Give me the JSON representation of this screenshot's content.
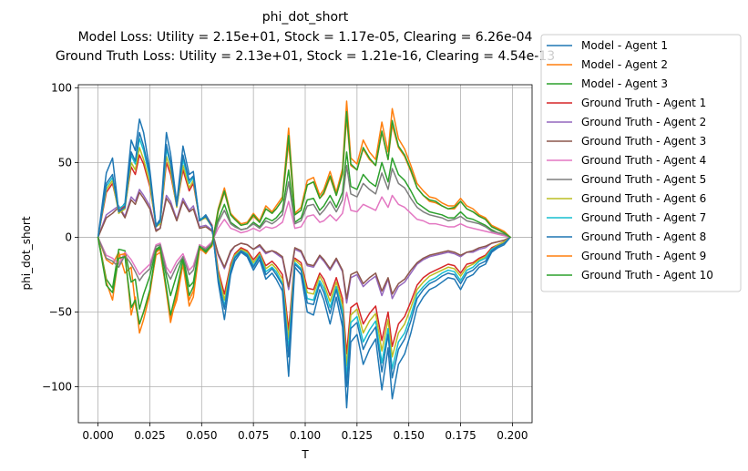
{
  "chart_data": {
    "type": "line",
    "title": "phi_dot_short",
    "subtitle_lines": [
      "Model Loss: Utility = 2.15e+01, Stock = 1.17e-05, Clearing = 6.26e-04",
      "Ground Truth Loss: Utility = 2.13e+01, Stock = 1.21e-16, Clearing = 4.54e-13"
    ],
    "xlabel": "T",
    "ylabel": "phi_dot_short",
    "xlim": [
      -0.0095,
      0.2095
    ],
    "ylim": [
      -124,
      102
    ],
    "xticks": [
      0.0,
      0.025,
      0.05,
      0.075,
      0.1,
      0.125,
      0.15,
      0.175,
      0.2
    ],
    "xtick_labels": [
      "0.000",
      "0.025",
      "0.050",
      "0.075",
      "0.100",
      "0.125",
      "0.150",
      "0.175",
      "0.200"
    ],
    "yticks": [
      -100,
      -50,
      0,
      50,
      100
    ],
    "ytick_labels": [
      "−100",
      "−50",
      "0",
      "50",
      "100"
    ],
    "grid": true,
    "legend_position": "outside-right",
    "x": [
      0.0,
      0.004,
      0.007,
      0.01,
      0.013,
      0.016,
      0.018,
      0.02,
      0.022,
      0.025,
      0.028,
      0.03,
      0.033,
      0.035,
      0.038,
      0.041,
      0.044,
      0.046,
      0.049,
      0.052,
      0.055,
      0.058,
      0.061,
      0.064,
      0.066,
      0.069,
      0.072,
      0.075,
      0.078,
      0.081,
      0.084,
      0.086,
      0.089,
      0.092,
      0.095,
      0.098,
      0.101,
      0.104,
      0.107,
      0.109,
      0.112,
      0.115,
      0.118,
      0.12,
      0.122,
      0.125,
      0.128,
      0.131,
      0.134,
      0.137,
      0.14,
      0.142,
      0.145,
      0.148,
      0.151,
      0.154,
      0.157,
      0.16,
      0.163,
      0.166,
      0.169,
      0.172,
      0.175,
      0.178,
      0.181,
      0.184,
      0.187,
      0.19,
      0.193,
      0.196,
      0.199
    ],
    "series": [
      {
        "name": "Model - Agent 1",
        "color": "#1f77b4",
        "values": [
          0,
          43,
          53,
          17,
          23,
          65,
          58,
          79,
          70,
          45,
          8,
          12,
          70,
          56,
          23,
          61,
          42,
          44,
          11,
          15,
          8,
          -30,
          -55,
          -25,
          -16,
          -10,
          -13,
          -22,
          -15,
          -28,
          -24,
          -28,
          -36,
          -93,
          -20,
          -25,
          -50,
          -52,
          -35,
          -42,
          -58,
          -40,
          -60,
          -114,
          -70,
          -65,
          -85,
          -75,
          -68,
          -102,
          -74,
          -108,
          -85,
          -78,
          -64,
          -47,
          -40,
          -35,
          -33,
          -30,
          -27,
          -28,
          -35,
          -27,
          -25,
          -20,
          -18,
          -10,
          -7,
          -5,
          0
        ]
      },
      {
        "name": "Model - Agent 2",
        "color": "#ff7f0e",
        "values": [
          0,
          -15,
          -18,
          -10,
          -24,
          -20,
          -45,
          -58,
          -50,
          -36,
          -12,
          -10,
          -35,
          -54,
          -42,
          -18,
          -46,
          -40,
          -8,
          -10,
          -6,
          17,
          30,
          15,
          12,
          8,
          9,
          14,
          10,
          19,
          16,
          19,
          25,
          63,
          15,
          18,
          35,
          37,
          26,
          29,
          40,
          28,
          42,
          80,
          48,
          45,
          59,
          52,
          48,
          70,
          52,
          75,
          60,
          54,
          44,
          33,
          28,
          24,
          23,
          21,
          19,
          19,
          24,
          19,
          17,
          14,
          12,
          7,
          5,
          3,
          0
        ]
      },
      {
        "name": "Model - Agent 3",
        "color": "#2ca02c",
        "values": [
          0,
          -28,
          -34,
          -8,
          -9,
          -30,
          -28,
          -48,
          -38,
          -26,
          -8,
          -6,
          -26,
          -39,
          -25,
          -13,
          -33,
          -30,
          -5,
          -9,
          -4,
          12,
          22,
          10,
          8,
          5,
          6,
          10,
          7,
          13,
          11,
          13,
          18,
          45,
          10,
          13,
          25,
          26,
          18,
          21,
          28,
          20,
          30,
          57,
          34,
          32,
          42,
          37,
          34,
          50,
          37,
          53,
          42,
          38,
          31,
          23,
          20,
          17,
          16,
          15,
          13,
          13,
          17,
          13,
          12,
          10,
          8,
          5,
          3,
          2,
          0
        ]
      },
      {
        "name": "Ground Truth - Agent 1",
        "color": "#d62728",
        "values": [
          0,
          30,
          36,
          18,
          21,
          47,
          42,
          55,
          49,
          34,
          8,
          10,
          50,
          42,
          21,
          45,
          31,
          36,
          12,
          14,
          8,
          -22,
          -38,
          -18,
          -11,
          -7,
          -9,
          -15,
          -10,
          -19,
          -16,
          -19,
          -25,
          -62,
          -14,
          -17,
          -34,
          -35,
          -24,
          -28,
          -39,
          -27,
          -41,
          -78,
          -47,
          -44,
          -58,
          -51,
          -46,
          -69,
          -50,
          -73,
          -58,
          -53,
          -43,
          -32,
          -27,
          -24,
          -22,
          -20,
          -18,
          -19,
          -24,
          -18,
          -17,
          -14,
          -12,
          -7,
          -5,
          -3,
          0
        ]
      },
      {
        "name": "Ground Truth - Agent 2",
        "color": "#9467bd",
        "values": [
          0,
          15,
          18,
          21,
          14,
          27,
          24,
          32,
          28,
          21,
          5,
          6,
          28,
          24,
          12,
          26,
          18,
          21,
          7,
          8,
          5,
          -12,
          -21,
          -10,
          -6,
          -4,
          -5,
          -8,
          -6,
          -11,
          -9,
          -11,
          -14,
          -35,
          -8,
          -10,
          -19,
          -20,
          -13,
          -16,
          -22,
          -15,
          -23,
          -44,
          -27,
          -25,
          -33,
          -29,
          -26,
          -39,
          -28,
          -41,
          -33,
          -30,
          -24,
          -18,
          -15,
          -13,
          -12,
          -11,
          -10,
          -11,
          -13,
          -10,
          -10,
          -8,
          -7,
          -4,
          -3,
          -2,
          0
        ]
      },
      {
        "name": "Ground Truth - Agent 3",
        "color": "#8c564b",
        "values": [
          0,
          13,
          16,
          20,
          13,
          25,
          22,
          30,
          26,
          19,
          4,
          6,
          26,
          22,
          11,
          24,
          17,
          19,
          6,
          7,
          4,
          -11,
          -20,
          -9,
          -6,
          -4,
          -5,
          -8,
          -5,
          -10,
          -9,
          -10,
          -13,
          -33,
          -7,
          -9,
          -18,
          -19,
          -12,
          -15,
          -21,
          -14,
          -22,
          -41,
          -25,
          -23,
          -31,
          -27,
          -24,
          -36,
          -27,
          -38,
          -31,
          -28,
          -22,
          -17,
          -14,
          -12,
          -11,
          -10,
          -9,
          -10,
          -12,
          -10,
          -9,
          -7,
          -6,
          -4,
          -3,
          -2,
          0
        ]
      },
      {
        "name": "Ground Truth - Agent 4",
        "color": "#e377c2",
        "values": [
          0,
          -12,
          -14,
          -18,
          -10,
          -15,
          -20,
          -25,
          -22,
          -18,
          -5,
          -4,
          -20,
          -24,
          -16,
          -11,
          -22,
          -19,
          -5,
          -7,
          -3,
          6,
          12,
          6,
          5,
          3,
          4,
          6,
          4,
          7,
          6,
          7,
          10,
          24,
          6,
          7,
          14,
          15,
          10,
          11,
          15,
          11,
          16,
          30,
          18,
          17,
          22,
          20,
          18,
          27,
          20,
          28,
          22,
          20,
          16,
          12,
          11,
          9,
          9,
          8,
          7,
          7,
          9,
          7,
          6,
          5,
          4,
          3,
          2,
          1,
          0
        ]
      },
      {
        "name": "Ground Truth - Agent 5",
        "color": "#7f7f7f",
        "values": [
          0,
          -14,
          -16,
          -20,
          -12,
          -18,
          -23,
          -29,
          -25,
          -21,
          -6,
          -5,
          -23,
          -28,
          -19,
          -13,
          -25,
          -22,
          -6,
          -8,
          -4,
          10,
          18,
          9,
          7,
          5,
          6,
          9,
          6,
          11,
          9,
          11,
          15,
          37,
          9,
          11,
          21,
          22,
          15,
          18,
          24,
          17,
          25,
          48,
          29,
          27,
          36,
          32,
          29,
          43,
          32,
          46,
          36,
          33,
          26,
          20,
          17,
          15,
          14,
          13,
          11,
          12,
          14,
          11,
          10,
          9,
          7,
          4,
          3,
          2,
          0
        ]
      },
      {
        "name": "Ground Truth - Agent 6",
        "color": "#bcbd22",
        "values": [
          0,
          32,
          38,
          16,
          19,
          50,
          45,
          60,
          52,
          36,
          7,
          9,
          54,
          45,
          20,
          48,
          33,
          38,
          11,
          13,
          7,
          -24,
          -42,
          -20,
          -12,
          -8,
          -10,
          -17,
          -11,
          -21,
          -18,
          -21,
          -28,
          -68,
          -15,
          -19,
          -37,
          -38,
          -26,
          -31,
          -43,
          -30,
          -45,
          -86,
          -52,
          -48,
          -64,
          -56,
          -51,
          -76,
          -55,
          -80,
          -64,
          -58,
          -47,
          -35,
          -30,
          -26,
          -24,
          -22,
          -20,
          -21,
          -26,
          -20,
          -18,
          -15,
          -13,
          -8,
          -5,
          -3,
          0
        ]
      },
      {
        "name": "Ground Truth - Agent 7",
        "color": "#17becf",
        "values": [
          0,
          34,
          40,
          19,
          22,
          55,
          49,
          66,
          58,
          40,
          8,
          10,
          59,
          49,
          22,
          52,
          36,
          40,
          12,
          14,
          7,
          -27,
          -46,
          -22,
          -13,
          -9,
          -11,
          -19,
          -12,
          -23,
          -20,
          -23,
          -31,
          -75,
          -17,
          -21,
          -41,
          -42,
          -29,
          -34,
          -47,
          -33,
          -49,
          -94,
          -57,
          -53,
          -70,
          -62,
          -56,
          -84,
          -61,
          -88,
          -70,
          -64,
          -52,
          -38,
          -33,
          -29,
          -27,
          -24,
          -22,
          -23,
          -29,
          -22,
          -20,
          -16,
          -14,
          -8,
          -6,
          -4,
          0
        ]
      },
      {
        "name": "Ground Truth - Agent 8",
        "color": "#1f77b4",
        "values": [
          0,
          36,
          42,
          17,
          20,
          57,
          51,
          70,
          61,
          42,
          7,
          11,
          62,
          50,
          21,
          55,
          38,
          41,
          11,
          14,
          7,
          -28,
          -48,
          -23,
          -14,
          -9,
          -12,
          -20,
          -13,
          -25,
          -21,
          -25,
          -32,
          -80,
          -18,
          -22,
          -44,
          -45,
          -31,
          -37,
          -51,
          -35,
          -53,
          -100,
          -61,
          -57,
          -75,
          -66,
          -60,
          -90,
          -65,
          -94,
          -75,
          -68,
          -56,
          -41,
          -35,
          -31,
          -29,
          -26,
          -24,
          -25,
          -31,
          -24,
          -22,
          -18,
          -16,
          -9,
          -6,
          -4,
          0
        ]
      },
      {
        "name": "Ground Truth - Agent 9",
        "color": "#ff7f0e",
        "values": [
          0,
          -30,
          -42,
          -12,
          -11,
          -52,
          -40,
          -64,
          -55,
          -38,
          -10,
          -8,
          -37,
          -57,
          -38,
          -16,
          -42,
          -36,
          -7,
          -11,
          -5,
          19,
          33,
          16,
          13,
          9,
          10,
          16,
          11,
          21,
          17,
          21,
          27,
          73,
          16,
          20,
          38,
          40,
          28,
          32,
          44,
          30,
          46,
          91,
          53,
          49,
          65,
          57,
          52,
          77,
          57,
          86,
          66,
          59,
          48,
          36,
          31,
          27,
          26,
          23,
          21,
          21,
          26,
          21,
          19,
          15,
          13,
          8,
          6,
          4,
          0
        ]
      },
      {
        "name": "Ground Truth - Agent 10",
        "color": "#2ca02c",
        "values": [
          0,
          -32,
          -37,
          -14,
          -13,
          -47,
          -42,
          -58,
          -50,
          -35,
          -9,
          -7,
          -34,
          -52,
          -35,
          -15,
          -39,
          -33,
          -6,
          -10,
          -5,
          18,
          31,
          15,
          12,
          8,
          9,
          15,
          10,
          19,
          16,
          19,
          25,
          68,
          15,
          18,
          35,
          37,
          26,
          30,
          41,
          28,
          43,
          84,
          49,
          45,
          60,
          53,
          48,
          71,
          52,
          78,
          61,
          55,
          45,
          33,
          28,
          25,
          24,
          21,
          19,
          20,
          24,
          19,
          17,
          14,
          12,
          7,
          5,
          3,
          0
        ]
      }
    ]
  }
}
